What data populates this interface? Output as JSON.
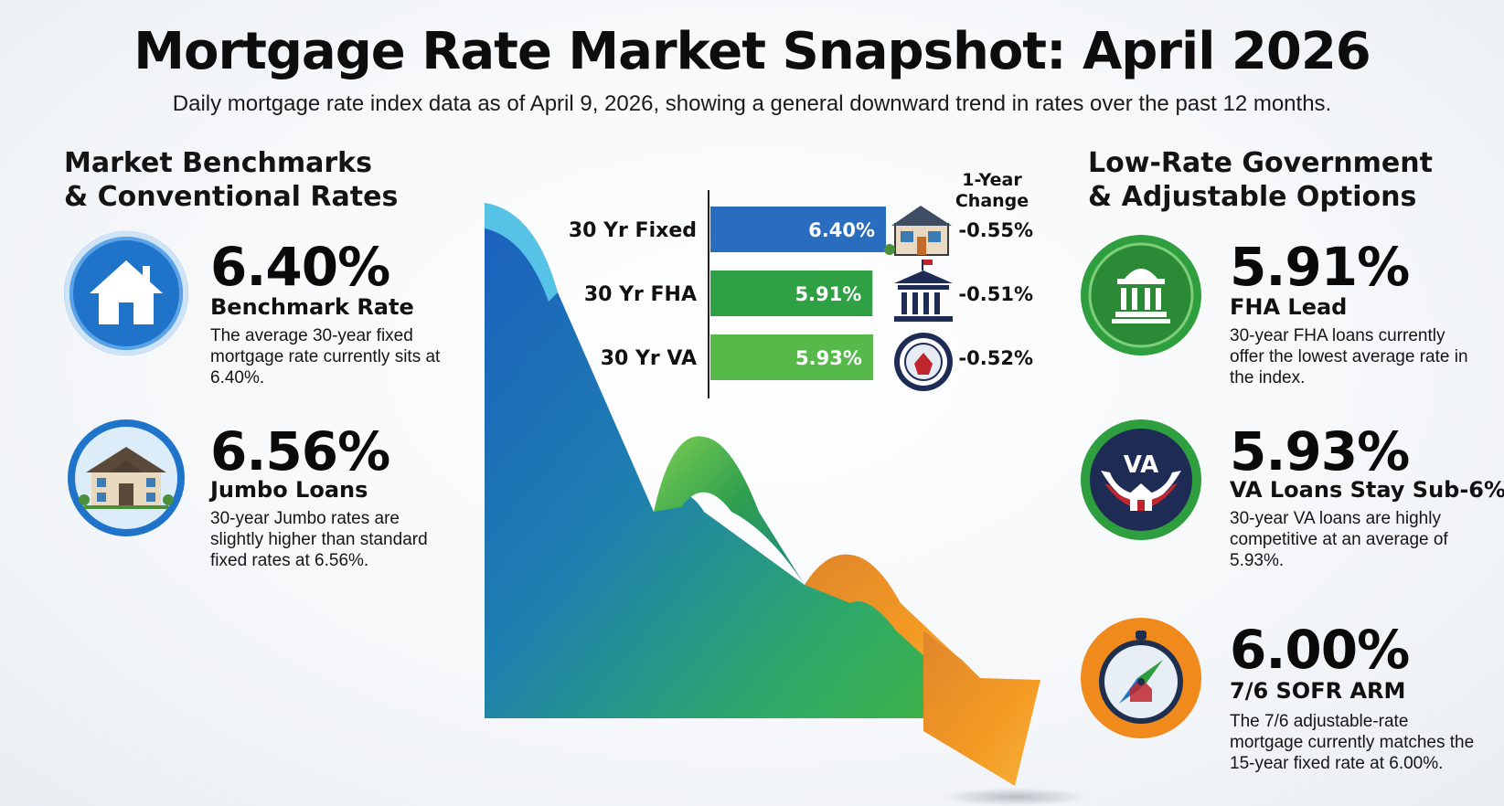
{
  "title": "Mortgage Rate Market Snapshot: April 2026",
  "subtitle": "Daily mortgage rate index data as of April 9, 2026, showing a general downward trend in rates over the past 12 months.",
  "left_section": {
    "heading_line1": "Market Benchmarks",
    "heading_line2": "& Conventional Rates",
    "cards": [
      {
        "value": "6.40%",
        "label": "Benchmark Rate",
        "description": "The average 30-year fixed mortgage rate currently sits at 6.40%.",
        "icon": "house-icon",
        "color": "#1f73c9"
      },
      {
        "value": "6.56%",
        "label": "Jumbo Loans",
        "description": "30-year Jumbo rates are slightly higher than standard fixed rates at 6.56%.",
        "icon": "mansion-icon",
        "color": "#1f73c9"
      }
    ]
  },
  "right_section": {
    "heading_line1": "Low-Rate Government",
    "heading_line2": "& Adjustable Options",
    "cards": [
      {
        "value": "5.91%",
        "label": "FHA Lead",
        "description": "30-year FHA loans currently offer the lowest average rate in the index.",
        "icon": "government-building-icon",
        "color": "#2e9e3e"
      },
      {
        "value": "5.93%",
        "label": "VA Loans Stay Sub-6%",
        "description": "30-year VA loans are highly competitive at an average of 5.93%.",
        "icon": "va-shield-icon",
        "icon_text": "VA",
        "color": "#2e9e3e"
      },
      {
        "value": "6.00%",
        "label": "7/6 SOFR ARM",
        "description": "The 7/6 adjustable-rate mortgage currently matches the 15-year fixed rate at 6.00%.",
        "icon": "compass-icon",
        "color": "#f08a1c"
      }
    ]
  },
  "chart_data": {
    "type": "bar",
    "orientation": "horizontal",
    "categories": [
      "30 Yr Fixed",
      "30 Yr FHA",
      "30 Yr VA"
    ],
    "values": [
      6.4,
      5.91,
      5.93
    ],
    "value_labels": [
      "6.40%",
      "5.91%",
      "5.93%"
    ],
    "change_header": "1-Year Change",
    "changes": [
      "-0.55%",
      "-0.51%",
      "-0.52%"
    ],
    "bar_colors": [
      "#2a6dbf",
      "#2fa043",
      "#56b94a"
    ],
    "row_icons": [
      "house-icon",
      "government-building-icon",
      "va-seal-icon"
    ],
    "decoration": "descending-ribbon-arrow",
    "ribbon_colors": [
      "#1d63c2",
      "#2ea86a",
      "#f39a24"
    ]
  }
}
